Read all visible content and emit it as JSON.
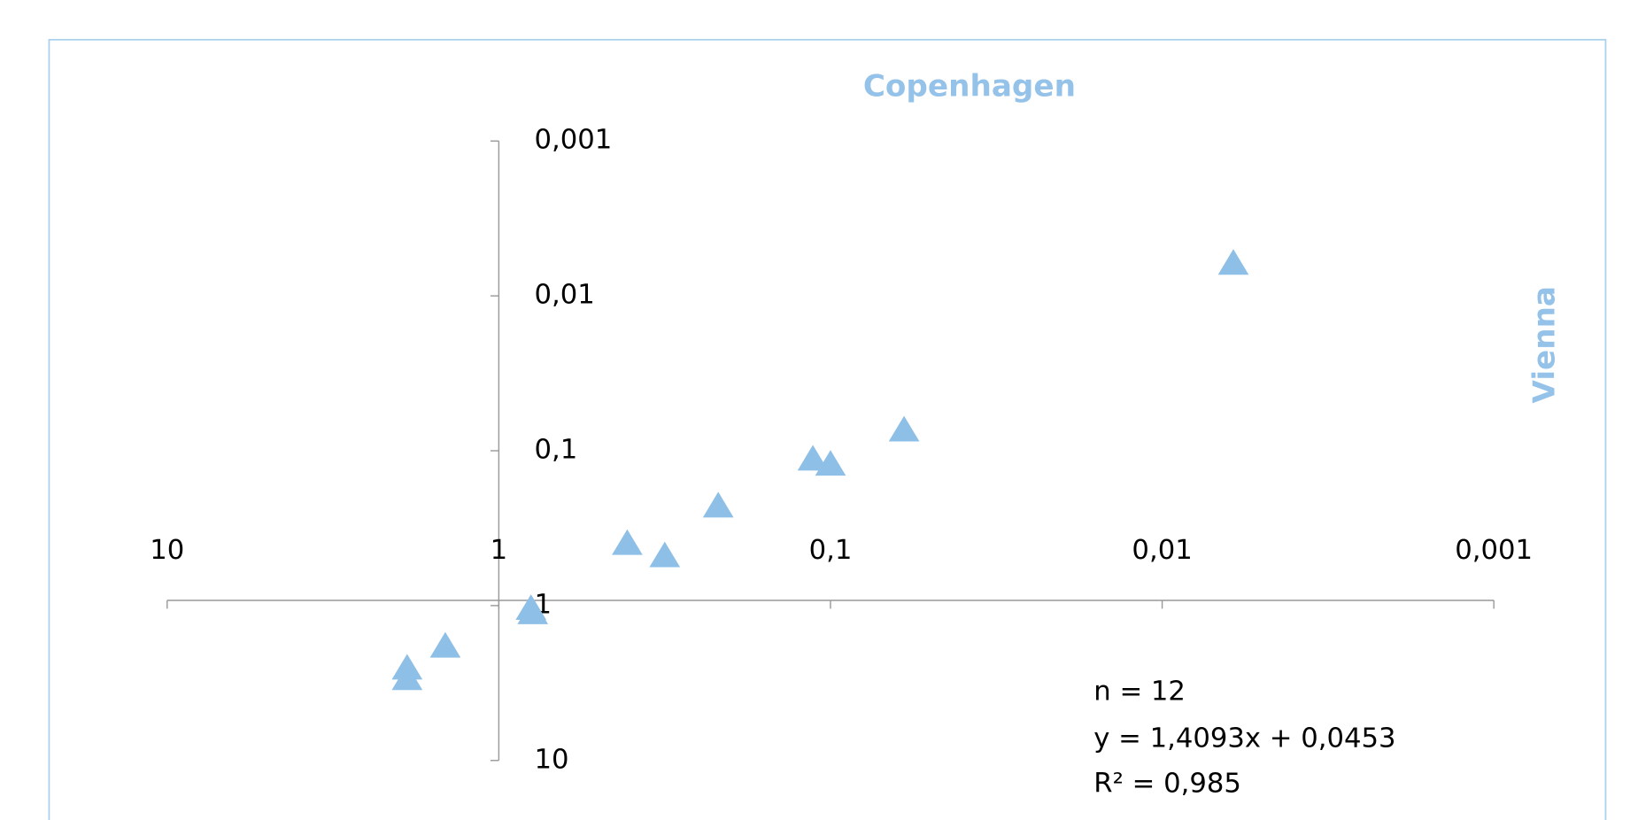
{
  "chart_data": {
    "type": "scatter",
    "title": "Copenhagen",
    "y_axis_title": "Vienna",
    "x": [
      0.0061,
      0.06,
      0.113,
      0.1,
      0.218,
      0.41,
      0.316,
      0.79,
      0.8,
      1.45,
      1.89,
      1.89
    ],
    "series": [
      {
        "name": "Vienna",
        "color": "#8ebfe6",
        "values": [
          0.0062,
          0.074,
          0.114,
          0.123,
          0.229,
          0.4,
          0.48,
          1.12,
          1.05,
          1.84,
          2.55,
          2.98
        ]
      }
    ],
    "xlim": [
      10,
      0.001
    ],
    "ylim": [
      10,
      0.001
    ],
    "log_x": true,
    "log_y": true,
    "xticks": [
      10,
      1,
      {
        "value": 0.1,
        "label": "0,1"
      },
      {
        "value": 0.01,
        "label": "0,01"
      },
      {
        "value": 0.001,
        "label": "0,001"
      }
    ],
    "yticks": [
      10,
      1,
      {
        "value": 0.1,
        "label": "0,1"
      },
      {
        "value": 0.01,
        "label": "0,01"
      },
      {
        "value": 0.001,
        "label": "0,001"
      }
    ],
    "annotations": [
      "n = 12",
      "y = 1,4093x + 0,0453",
      "R² = 0,985"
    ]
  }
}
